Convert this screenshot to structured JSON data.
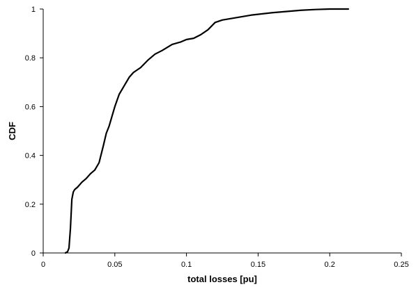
{
  "chart_data": {
    "type": "line",
    "title": "",
    "xlabel": "total losses [pu]",
    "ylabel": "CDF",
    "xlim": [
      0,
      0.25
    ],
    "ylim": [
      0,
      1
    ],
    "x_ticks": [
      0,
      0.05,
      0.1,
      0.15,
      0.2,
      0.25
    ],
    "x_tick_labels": [
      "0",
      "0.05",
      "0.1",
      "0.15",
      "0.2",
      "0.25"
    ],
    "y_ticks": [
      0,
      0.2,
      0.4,
      0.6,
      0.8,
      1
    ],
    "y_tick_labels": [
      "0",
      "0.2",
      "0.4",
      "0.6",
      "0.8",
      "1"
    ],
    "grid": false,
    "legend": "none",
    "series": [
      {
        "x": [
          0.0155,
          0.017,
          0.018,
          0.019,
          0.02,
          0.021,
          0.022,
          0.024,
          0.027,
          0.03,
          0.033,
          0.036,
          0.039,
          0.042,
          0.044,
          0.046,
          0.048,
          0.05,
          0.053,
          0.056,
          0.06,
          0.063,
          0.068,
          0.073,
          0.078,
          0.083,
          0.09,
          0.096,
          0.1,
          0.105,
          0.11,
          0.115,
          0.12,
          0.125,
          0.135,
          0.145,
          0.16,
          0.17,
          0.18,
          0.19,
          0.2,
          0.213
        ],
        "y": [
          0,
          0.005,
          0.02,
          0.1,
          0.22,
          0.25,
          0.26,
          0.27,
          0.29,
          0.305,
          0.325,
          0.34,
          0.37,
          0.44,
          0.49,
          0.52,
          0.56,
          0.6,
          0.65,
          0.68,
          0.72,
          0.74,
          0.76,
          0.79,
          0.815,
          0.83,
          0.855,
          0.865,
          0.875,
          0.88,
          0.895,
          0.915,
          0.945,
          0.955,
          0.965,
          0.975,
          0.985,
          0.99,
          0.995,
          0.998,
          1,
          1
        ]
      }
    ]
  }
}
